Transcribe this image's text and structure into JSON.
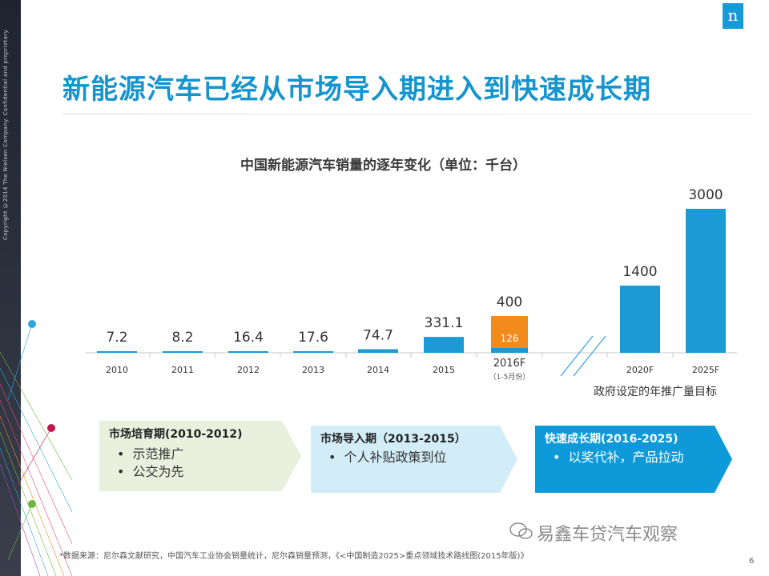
{
  "sidebar": {
    "copyright": "Copyright ©2014 The Nielsen Company. Confidential and proprietary."
  },
  "logo": {
    "letter": "n",
    "color": "#139bd8"
  },
  "page": {
    "title": "新能源汽车已经从市场导入期进入到快速成长期",
    "number": "6"
  },
  "chart_data": {
    "type": "bar",
    "title": "中国新能源汽车销量的逐年变化（单位：千台）",
    "categories": [
      "2010",
      "2011",
      "2012",
      "2013",
      "2014",
      "2015",
      "2016F",
      "2020F",
      "2025F"
    ],
    "category_sublabels": {
      "2016F": "（1-5月份）"
    },
    "values": [
      7.2,
      8.2,
      16.4,
      17.6,
      74.7,
      331.1,
      400,
      1400,
      3000
    ],
    "value_labels": [
      "7.2",
      "8.2",
      "16.4",
      "17.6",
      "74.7",
      "331.1",
      "400",
      "1400",
      "3000"
    ],
    "highlight": {
      "category": "2016F",
      "value": 126,
      "label": "126",
      "color": "#f28a1c"
    },
    "axis_break_after": "2016F",
    "bar_color": "#1b9ad6",
    "annotation": "政府设定的年推广量目标",
    "grid": false
  },
  "phases": [
    {
      "title": "市场培育期(2010-2012)",
      "items": [
        "示范推广",
        "公交为先"
      ],
      "color": "#e9f1de"
    },
    {
      "title": "市场导入期（2013-2015）",
      "items": [
        "个人补贴政策到位"
      ],
      "color": "#d3edf8"
    },
    {
      "title": "快速成长期(2016-2025)",
      "items": [
        "以奖代补，产品拉动"
      ],
      "color": "#0e9ad8"
    }
  ],
  "source": "*数据来源：尼尔森文献研究，中国汽车工业协会销量统计，尼尔森销量预测，《<中国制造2025>重点领域技术路线图(2015年版)》",
  "watermark": "易鑫车贷汽车观察"
}
